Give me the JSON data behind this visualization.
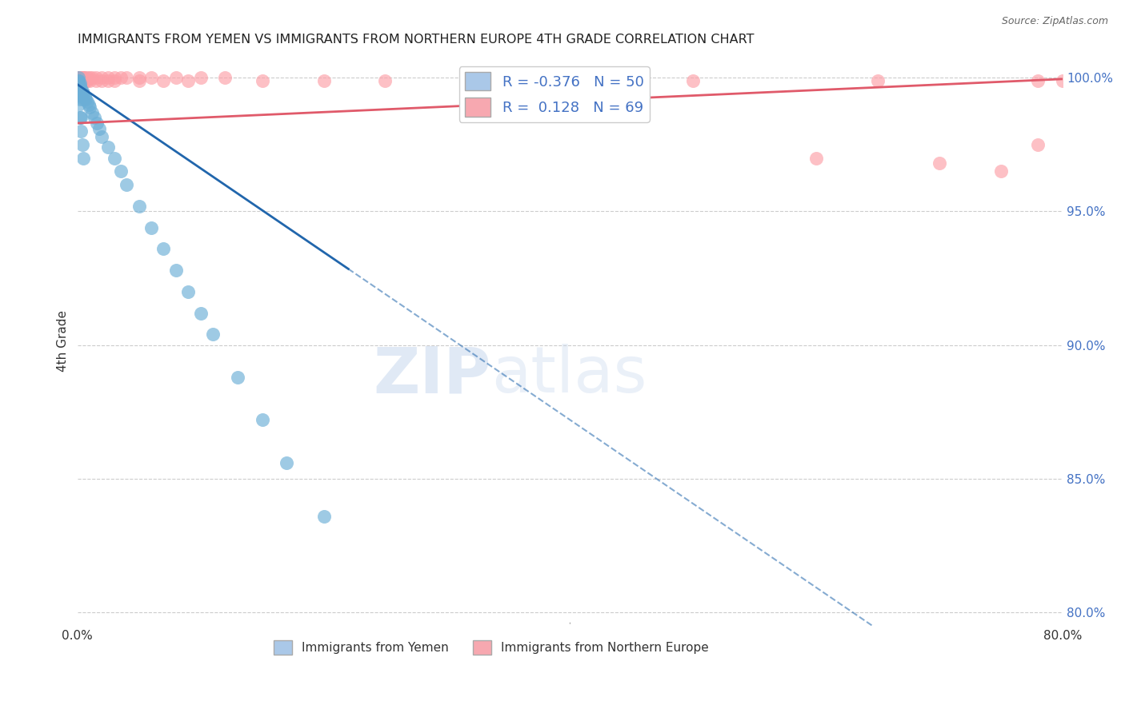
{
  "title": "IMMIGRANTS FROM YEMEN VS IMMIGRANTS FROM NORTHERN EUROPE 4TH GRADE CORRELATION CHART",
  "source": "Source: ZipAtlas.com",
  "ylabel": "4th Grade",
  "xlim": [
    0.0,
    0.8
  ],
  "ylim": [
    0.795,
    1.008
  ],
  "x_ticks": [
    0.0,
    0.1,
    0.2,
    0.3,
    0.4,
    0.5,
    0.6,
    0.7,
    0.8
  ],
  "x_tick_labels": [
    "0.0%",
    "",
    "",
    "",
    "",
    "",
    "",
    "",
    "80.0%"
  ],
  "y_ticks": [
    0.8,
    0.85,
    0.9,
    0.95,
    1.0
  ],
  "y_tick_labels": [
    "80.0%",
    "85.0%",
    "90.0%",
    "95.0%",
    "100.0%"
  ],
  "legend_blue_label": "Immigrants from Yemen",
  "legend_pink_label": "Immigrants from Northern Europe",
  "R_blue": -0.376,
  "N_blue": 50,
  "R_pink": 0.128,
  "N_pink": 69,
  "blue_color": "#6baed6",
  "pink_color": "#fc9fa7",
  "blue_line_color": "#2166ac",
  "pink_line_color": "#e05a6a",
  "watermark": "ZIPatlas",
  "blue_x": [
    0.001,
    0.001,
    0.001,
    0.001,
    0.001,
    0.001,
    0.002,
    0.002,
    0.002,
    0.002,
    0.003,
    0.003,
    0.003,
    0.004,
    0.004,
    0.004,
    0.005,
    0.005,
    0.006,
    0.007,
    0.008,
    0.009,
    0.01,
    0.012,
    0.014,
    0.016,
    0.018,
    0.02,
    0.025,
    0.03,
    0.035,
    0.04,
    0.05,
    0.06,
    0.07,
    0.08,
    0.09,
    0.1,
    0.11,
    0.13,
    0.15,
    0.17,
    0.2,
    0.001,
    0.002,
    0.003,
    0.004,
    0.005,
    0.003,
    0.002
  ],
  "blue_y": [
    1.0,
    0.999,
    0.999,
    0.998,
    0.997,
    0.996,
    0.998,
    0.997,
    0.996,
    0.995,
    0.996,
    0.995,
    0.994,
    0.995,
    0.994,
    0.993,
    0.994,
    0.992,
    0.993,
    0.992,
    0.991,
    0.99,
    0.989,
    0.987,
    0.985,
    0.983,
    0.981,
    0.978,
    0.974,
    0.97,
    0.965,
    0.96,
    0.952,
    0.944,
    0.936,
    0.928,
    0.92,
    0.912,
    0.904,
    0.888,
    0.872,
    0.856,
    0.836,
    0.99,
    0.985,
    0.98,
    0.975,
    0.97,
    0.985,
    0.992
  ],
  "pink_x": [
    0.001,
    0.001,
    0.001,
    0.001,
    0.001,
    0.001,
    0.001,
    0.001,
    0.001,
    0.001,
    0.001,
    0.001,
    0.001,
    0.001,
    0.001,
    0.002,
    0.002,
    0.002,
    0.002,
    0.002,
    0.003,
    0.003,
    0.003,
    0.004,
    0.004,
    0.005,
    0.005,
    0.006,
    0.008,
    0.01,
    0.012,
    0.015,
    0.02,
    0.025,
    0.03,
    0.035,
    0.04,
    0.05,
    0.06,
    0.08,
    0.1,
    0.12,
    0.002,
    0.003,
    0.004,
    0.005,
    0.006,
    0.007,
    0.008,
    0.01,
    0.015,
    0.02,
    0.025,
    0.03,
    0.05,
    0.07,
    0.09,
    0.15,
    0.2,
    0.25,
    0.35,
    0.5,
    0.65,
    0.78,
    0.6,
    0.7,
    0.75,
    0.78,
    0.8
  ],
  "pink_y": [
    1.0,
    1.0,
    1.0,
    1.0,
    1.0,
    1.0,
    1.0,
    1.0,
    1.0,
    1.0,
    1.0,
    1.0,
    1.0,
    1.0,
    1.0,
    1.0,
    1.0,
    1.0,
    1.0,
    1.0,
    1.0,
    1.0,
    1.0,
    1.0,
    1.0,
    1.0,
    1.0,
    1.0,
    1.0,
    1.0,
    1.0,
    1.0,
    1.0,
    1.0,
    1.0,
    1.0,
    1.0,
    1.0,
    1.0,
    1.0,
    1.0,
    1.0,
    0.999,
    0.999,
    0.999,
    0.999,
    0.999,
    0.999,
    0.999,
    0.999,
    0.999,
    0.999,
    0.999,
    0.999,
    0.999,
    0.999,
    0.999,
    0.999,
    0.999,
    0.999,
    0.999,
    0.999,
    0.999,
    0.999,
    0.97,
    0.968,
    0.965,
    0.975,
    0.999
  ]
}
